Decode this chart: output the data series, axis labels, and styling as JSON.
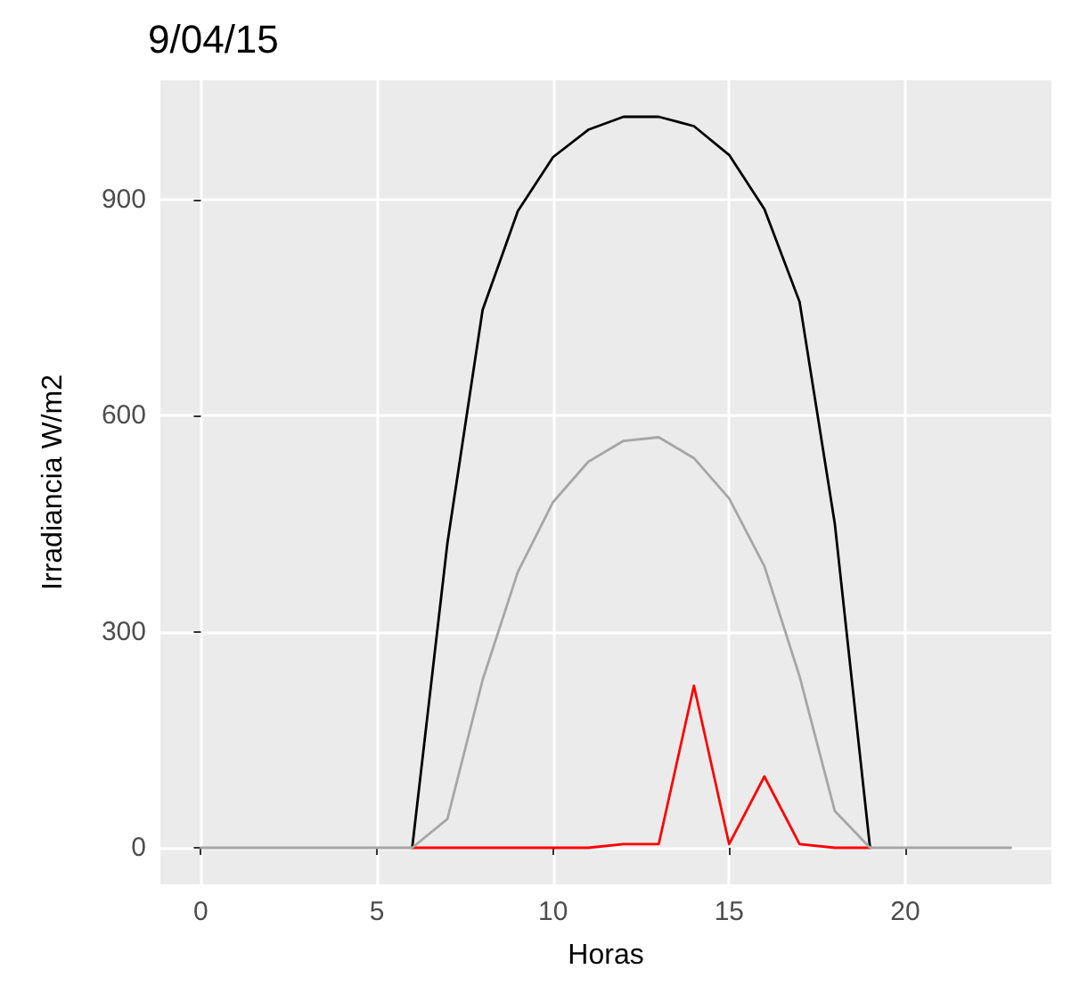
{
  "chart_data": {
    "type": "line",
    "title": "9/04/15",
    "xlabel": "Horas",
    "ylabel": "Irradiancia W/m2",
    "x": [
      0,
      1,
      2,
      3,
      4,
      5,
      6,
      7,
      8,
      9,
      10,
      11,
      12,
      13,
      14,
      15,
      16,
      17,
      18,
      19,
      20,
      21,
      22,
      23
    ],
    "series": [
      {
        "color": "#000000",
        "values": [
          null,
          null,
          null,
          null,
          null,
          null,
          0,
          423,
          747,
          884,
          959,
          997,
          1015,
          1015,
          1002,
          962,
          887,
          758,
          450,
          0,
          null,
          null,
          null,
          null
        ]
      },
      {
        "color": "#ff0000",
        "values": [
          null,
          null,
          null,
          null,
          null,
          null,
          0,
          0,
          0,
          0,
          0,
          0,
          5,
          5,
          225,
          5,
          99,
          5,
          0,
          0,
          null,
          null,
          null,
          null
        ]
      },
      {
        "color": "#a6a6a6",
        "values": [
          0,
          0,
          0,
          0,
          0,
          0,
          0,
          40,
          233,
          383,
          480,
          536,
          565,
          570,
          541,
          485,
          391,
          238,
          51,
          0,
          0,
          0,
          0,
          0
        ]
      }
    ],
    "xlim": [
      -1.15,
      24.15
    ],
    "xticks": [
      0,
      5,
      10,
      15,
      20
    ],
    "ylim": [
      -50.75,
      1065.75
    ],
    "yticks": [
      0,
      300,
      600,
      900
    ],
    "grid": true,
    "marker": "none",
    "line_style": "solid"
  }
}
